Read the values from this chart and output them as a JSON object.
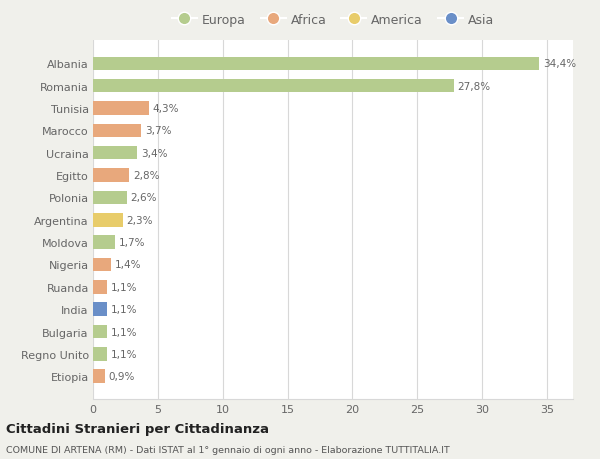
{
  "title": "Cittadini Stranieri per Cittadinanza",
  "subtitle": "COMUNE DI ARTENA (RM) - Dati ISTAT al 1° gennaio di ogni anno - Elaborazione TUTTITALIA.IT",
  "categories": [
    "Albania",
    "Romania",
    "Tunisia",
    "Marocco",
    "Ucraina",
    "Egitto",
    "Polonia",
    "Argentina",
    "Moldova",
    "Nigeria",
    "Ruanda",
    "India",
    "Bulgaria",
    "Regno Unito",
    "Etiopia"
  ],
  "values": [
    34.4,
    27.8,
    4.3,
    3.7,
    3.4,
    2.8,
    2.6,
    2.3,
    1.7,
    1.4,
    1.1,
    1.1,
    1.1,
    1.1,
    0.9
  ],
  "labels": [
    "34,4%",
    "27,8%",
    "4,3%",
    "3,7%",
    "3,4%",
    "2,8%",
    "2,6%",
    "2,3%",
    "1,7%",
    "1,4%",
    "1,1%",
    "1,1%",
    "1,1%",
    "1,1%",
    "0,9%"
  ],
  "continents": [
    "Europa",
    "Europa",
    "Africa",
    "Africa",
    "Europa",
    "Africa",
    "Europa",
    "America",
    "Europa",
    "Africa",
    "Africa",
    "Asia",
    "Europa",
    "Europa",
    "Africa"
  ],
  "colors": {
    "Europa": "#b5cc8e",
    "Africa": "#e8a87c",
    "America": "#e8cc6a",
    "Asia": "#6a8fc8"
  },
  "xlim": [
    0,
    37
  ],
  "xticks": [
    0,
    5,
    10,
    15,
    20,
    25,
    30,
    35
  ],
  "background_color": "#f0f0eb",
  "plot_bg": "#ffffff",
  "grid_color": "#d8d8d8",
  "text_color": "#666666"
}
